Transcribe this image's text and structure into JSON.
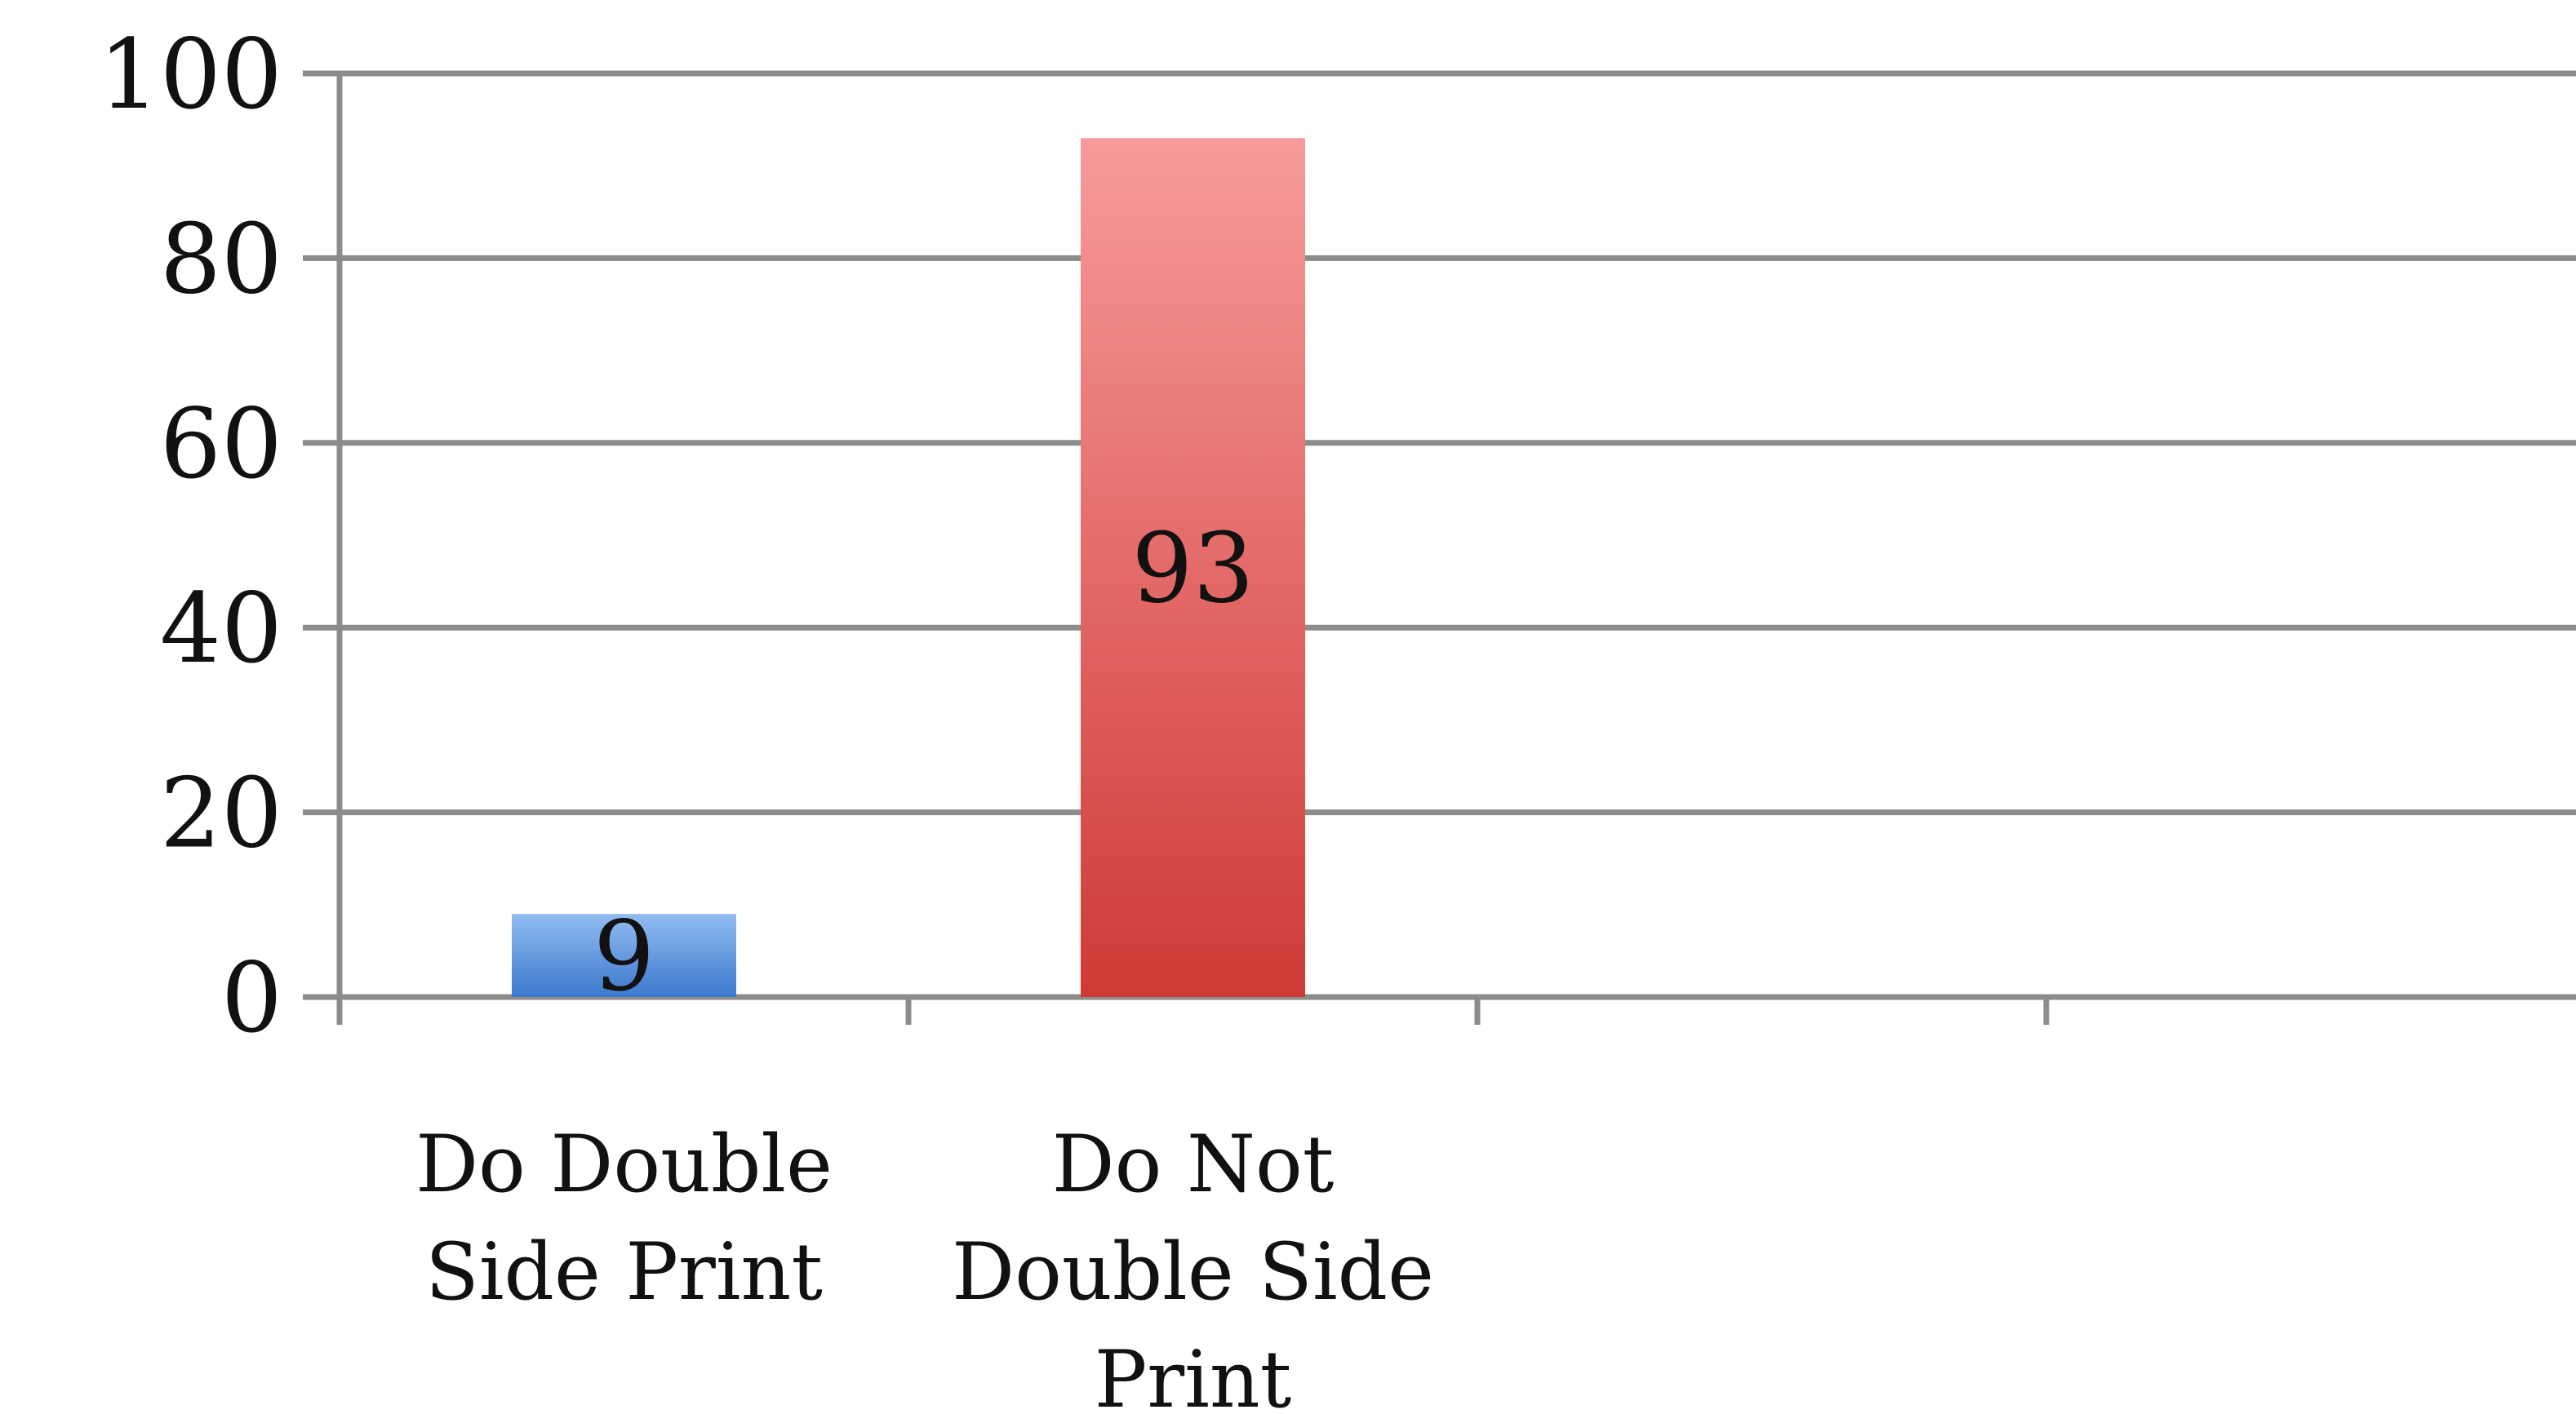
{
  "chart_data": {
    "type": "bar",
    "categories": [
      "Do Double Side Print",
      "Do Not Double Side Print"
    ],
    "category_lines": [
      [
        "Do Double",
        "Side Print"
      ],
      [
        "Do Not",
        "Double Side",
        "Print"
      ]
    ],
    "values": [
      9,
      93
    ],
    "data_labels": [
      "9",
      "93"
    ],
    "ylim": [
      0,
      100
    ],
    "yticks": [
      0,
      20,
      40,
      60,
      80,
      100
    ],
    "grid": true,
    "title": "",
    "xlabel": "",
    "ylabel": "",
    "colors": {
      "bar_1_top": "#93bdf2",
      "bar_1_bottom": "#3c78cc",
      "bar_2_top": "#f79b9b",
      "bar_2_bottom": "#cf3a36",
      "grid": "#8c8c8c"
    }
  }
}
